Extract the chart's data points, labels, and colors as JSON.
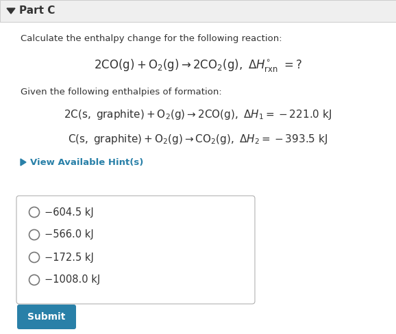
{
  "bg_color": "#f7f7f7",
  "header_bg": "#efefef",
  "content_bg": "#ffffff",
  "border_color": "#cccccc",
  "text_color": "#333333",
  "hint_color": "#2980a8",
  "submit_color": "#2980a8",
  "part_label": "Part C",
  "question_text": "Calculate the enthalpy change for the following reaction:",
  "given_text": "Given the following enthalpies of formation:",
  "hint_text": "View Available Hint(s)",
  "options": [
    "−604.5 kJ",
    "−566.0 kJ",
    "−172.5 kJ",
    "−1008.0 kJ"
  ],
  "submit_text": "Submit",
  "figw": 5.78,
  "figh": 4.88,
  "dpi": 100
}
